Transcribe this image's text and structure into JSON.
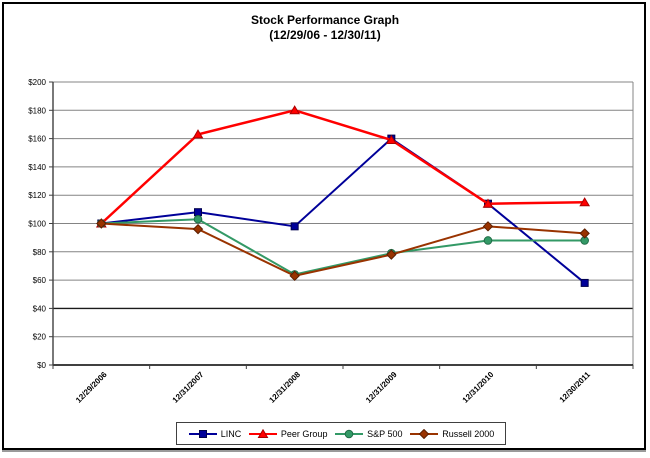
{
  "chart_data": {
    "type": "line",
    "title": "Stock Performance Graph",
    "subtitle": "(12/29/06 - 12/30/11)",
    "categories": [
      "12/29/2006",
      "12/31/2007",
      "12/31/2008",
      "12/31/2009",
      "12/31/2010",
      "12/30/2011"
    ],
    "series": [
      {
        "name": "LINC",
        "color": "#000099",
        "marker_border": "#00004d",
        "marker": "square",
        "line_width": 2,
        "values": [
          100,
          108,
          98,
          160,
          114,
          58
        ]
      },
      {
        "name": "Peer Group",
        "color": "#ff0000",
        "marker_border": "#aa0000",
        "marker": "triangle",
        "line_width": 2.5,
        "values": [
          100,
          163,
          180,
          159,
          114,
          115
        ]
      },
      {
        "name": "S&P 500",
        "color": "#339966",
        "marker_border": "#1f6b46",
        "marker": "circle",
        "line_width": 2,
        "values": [
          100,
          103,
          64,
          79,
          88,
          88
        ]
      },
      {
        "name": "Russell 2000",
        "color": "#993300",
        "marker_border": "#5c1f00",
        "marker": "diamond",
        "line_width": 2,
        "values": [
          100,
          96,
          63,
          78,
          98,
          93
        ]
      }
    ],
    "ylim": [
      0,
      200
    ],
    "ytick_step": 20,
    "y_tick_labels": [
      "$200",
      "$180",
      "$160",
      "$140",
      "$120",
      "$100",
      "$80",
      "$60",
      "$40",
      "$20",
      "$0"
    ],
    "grid": "horizontal",
    "gridline_color": "#848484",
    "dark_gridline_values": [
      40
    ],
    "axis_color": "#404040",
    "legend_position": "bottom"
  }
}
